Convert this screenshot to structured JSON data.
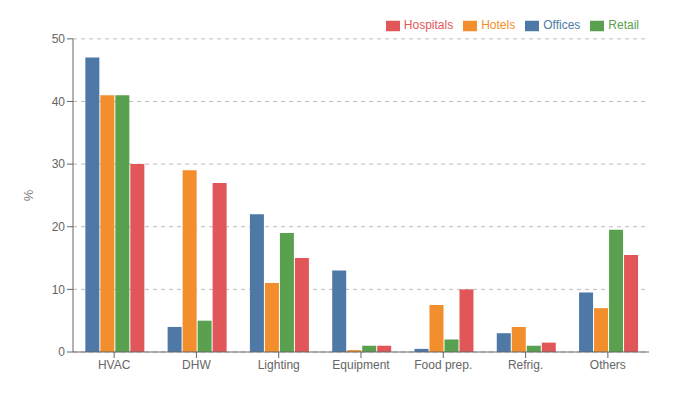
{
  "chart_data": {
    "type": "bar",
    "categories": [
      "HVAC",
      "DHW",
      "Lighting",
      "Equipment",
      "Food prep.",
      "Refrig.",
      "Others"
    ],
    "series": [
      {
        "name": "Offices",
        "color": "#4e79a7",
        "values": [
          47,
          4,
          22,
          13,
          0.5,
          3,
          9.5
        ]
      },
      {
        "name": "Hotels",
        "color": "#f28e2b",
        "values": [
          41,
          29,
          11,
          0.3,
          7.5,
          4,
          7
        ]
      },
      {
        "name": "Retail",
        "color": "#59a14f",
        "values": [
          41,
          5,
          19,
          1,
          2,
          1,
          19.5
        ]
      },
      {
        "name": "Hospitals",
        "color": "#e15759",
        "values": [
          30,
          27,
          15,
          1,
          10,
          1.5,
          15.5
        ]
      }
    ],
    "ylabel": "%",
    "ylim": [
      0,
      50
    ],
    "yticks": [
      0,
      10,
      20,
      30,
      40,
      50
    ],
    "grid": true,
    "legend": "upper right"
  }
}
